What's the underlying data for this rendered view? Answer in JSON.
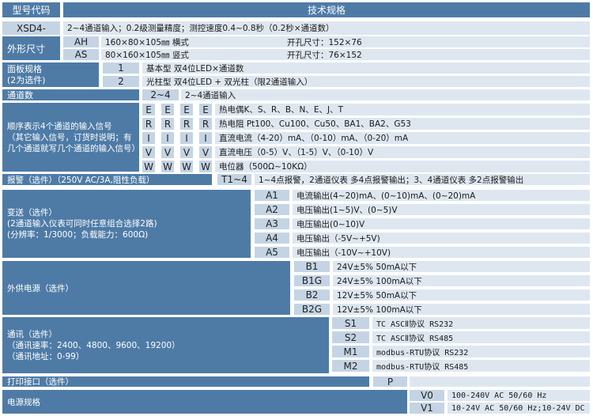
{
  "header": {
    "code": "型号代码",
    "spec": "技术规格"
  },
  "model": {
    "code": "XSD4-",
    "desc": "2~4通道输入；0.2级测量精度；测控速度0.4~0.8秒（0.2秒×通道数）"
  },
  "shape": {
    "label": "外形尺寸",
    "rows": [
      {
        "code": "AH",
        "desc": "160×80×105㎜ 横式",
        "cutout": "开孔尺寸：152×76"
      },
      {
        "code": "AS",
        "desc": "80×160×105㎜ 竖式",
        "cutout": "开孔尺寸：76×152"
      }
    ]
  },
  "panel": {
    "label": "面板规格\n(2为选件)",
    "rows": [
      {
        "code": "1",
        "desc": "基本型 双4位LED×通道数"
      },
      {
        "code": "2",
        "desc": "光柱型 双4位LED + 双光柱（限2通道输入）"
      }
    ]
  },
  "channels": {
    "label": "通道数",
    "code": "2~4",
    "desc": "2~4通道输入"
  },
  "input": {
    "label": "顺序表示4个通道的输入信号\n（其它输入信号，订货时说明；有几个通道就写几个通道的输入信号）",
    "rows": [
      {
        "code": "E",
        "desc": "热电偶K、S、R、B、N、E、J、T"
      },
      {
        "code": "R",
        "desc": "热电阻 Pt100、Cu100、Cu50、BA1、BA2、G53"
      },
      {
        "code": "I",
        "desc": "直流电流（4-20）mA、（0-10）mA、（0-20）mA"
      },
      {
        "code": "V",
        "desc": "直流电压（0-5）V、（1-5）V、（0-10）V"
      },
      {
        "code": "W",
        "desc": "电位器（500Ω~10KΩ）"
      }
    ]
  },
  "alarm": {
    "label": "报警（选件）（250V AC/3A,阻性负载）",
    "code": "T1~4",
    "desc": "1~4点报警，2通道仪表  多4点报警输出；3、4通道仪表  多2点报警输出"
  },
  "transmit": {
    "label": "变送（选件）\n(2通道输入仪表可同时任意组合选择2路)\n(分辨率：1/3000；负载能力：600Ω)",
    "rows": [
      {
        "code": "A1",
        "desc": "电流输出(4~20)mA、(0~10)mA、(0~20)mA"
      },
      {
        "code": "A2",
        "desc": "电压输出(1~5)V、(0~5)V"
      },
      {
        "code": "A3",
        "desc": "电压输出(0~10)V"
      },
      {
        "code": "A4",
        "desc": "电压输出（-5V~+5V)"
      },
      {
        "code": "A5",
        "desc": "电压输出（-10V~+10V)"
      }
    ]
  },
  "aux_power": {
    "label": "外供电源（选件）",
    "rows": [
      {
        "code": "B1",
        "desc": "24V±5% 50mA以下"
      },
      {
        "code": "B1G",
        "desc": "24V±5% 100mA以下"
      },
      {
        "code": "B2",
        "desc": "12V±5% 50mA以下"
      },
      {
        "code": "B2G",
        "desc": "12V±5% 100mA以下"
      }
    ]
  },
  "comm": {
    "label": "通讯（选件）\n（通讯速率：2400、4800、9600、19200）\n（通讯地址：0-99）",
    "rows": [
      {
        "code": "S1",
        "desc": "TC ASCⅡ协议 RS232"
      },
      {
        "code": "S2",
        "desc": "TC ASCⅡ协议 RS485"
      },
      {
        "code": "M1",
        "desc": "modbus-RTU协议 RS232"
      },
      {
        "code": "M2",
        "desc": "modbus-RTU协议 RS485"
      }
    ]
  },
  "print": {
    "label": "打印接口（选件）",
    "code": "P",
    "desc": ""
  },
  "power": {
    "label": "电源规格",
    "rows": [
      {
        "code": "V0",
        "desc": "100-240V AC 50/60 Hz"
      },
      {
        "code": "V1",
        "desc": "10-24V AC 50/60 Hz;10-24V DC"
      }
    ]
  },
  "colors": {
    "dark": "#4e7ba6",
    "code_cell": "#c4d4e4",
    "desc_cell": "#dee7f0"
  }
}
